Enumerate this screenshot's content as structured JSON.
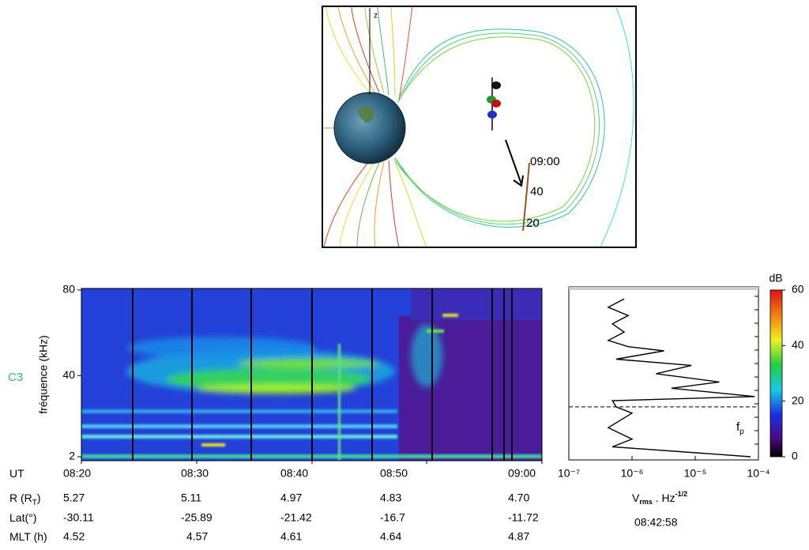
{
  "orbit_diagram": {
    "axis_label": "z",
    "time_labels": [
      "09:00",
      "40",
      "20"
    ]
  },
  "spectrogram": {
    "spacecraft": "C3",
    "ylabel": "fréquence (kHz)",
    "ylim": [
      2,
      80
    ],
    "yticks": [
      2,
      40,
      80
    ]
  },
  "ephemeris": {
    "rows": [
      {
        "label": "UT",
        "values": [
          "08:20",
          "08:30",
          "08:40",
          "08:50",
          "09:00"
        ]
      },
      {
        "label": "R (R",
        "label_sub": "T",
        "label_end": ")",
        "values": [
          "5.27",
          "5.11",
          "4.97",
          "4.83",
          "4.70"
        ]
      },
      {
        "label": "Lat(°)",
        "values": [
          "-30.11",
          "-25.89",
          "-21.42",
          "-16.7",
          "-11.72"
        ]
      },
      {
        "label": "MLT (h)",
        "values": [
          "4.52",
          "4.57",
          "4.61",
          "4.64",
          "4.87"
        ]
      }
    ]
  },
  "colorbar": {
    "label": "dB",
    "ylim": [
      0,
      60
    ],
    "yticks": [
      0,
      20,
      40,
      60
    ]
  },
  "spectrum": {
    "type": "line",
    "log_x": true,
    "color": "#000000",
    "xlim": [
      1e-07,
      0.0001
    ],
    "xticks": [
      {
        "value": 1e-07,
        "label": "10⁻⁷"
      },
      {
        "value": 1e-06,
        "label": "10⁻⁶"
      },
      {
        "value": 1e-05,
        "label": "10⁻⁵"
      },
      {
        "value": 0.0001,
        "label": "10⁻⁴"
      }
    ],
    "ylim": [
      2,
      80
    ],
    "x": [
      7.5e-07,
      4.2e-07,
      8.7e-07,
      4.9e-07,
      7.5e-07,
      4.2e-07,
      8.7e-07,
      3.2e-06,
      5.6e-07,
      8.7e-06,
      2.4e-06,
      2.4e-05,
      4.2e-06,
      8.7e-05,
      4.9e-07,
      5.6e-07,
      1e-06,
      4.2e-07,
      1e-06,
      4.9e-07,
      2.4e-05,
      7.5e-05
    ],
    "y": [
      78,
      74,
      70,
      66,
      62,
      58,
      55,
      53,
      49,
      46,
      42,
      38,
      35,
      31,
      29,
      26,
      23,
      16,
      10.5,
      6.8,
      3.1,
      2
    ],
    "xlabel": {
      "main": "V",
      "sub": "rms",
      "mid": " . Hz",
      "sup": "-1/2"
    },
    "fp": {
      "label": "f",
      "sub": "p",
      "value": 26
    },
    "time": "08:42:58"
  }
}
